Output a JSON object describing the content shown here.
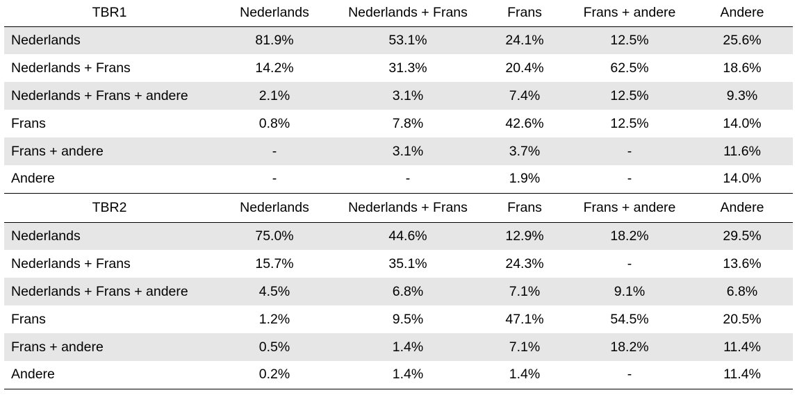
{
  "sections": [
    {
      "title": "TBR1",
      "columns": [
        "Nederlands",
        "Nederlands + Frans",
        "Frans",
        "Frans + andere",
        "Andere"
      ],
      "rows": [
        {
          "label": "Nederlands",
          "values": [
            "81.9%",
            "53.1%",
            "24.1%",
            "12.5%",
            "25.6%"
          ]
        },
        {
          "label": "Nederlands + Frans",
          "values": [
            "14.2%",
            "31.3%",
            "20.4%",
            "62.5%",
            "18.6%"
          ]
        },
        {
          "label": "Nederlands + Frans + andere",
          "values": [
            "2.1%",
            "3.1%",
            "7.4%",
            "12.5%",
            "9.3%"
          ]
        },
        {
          "label": "Frans",
          "values": [
            "0.8%",
            "7.8%",
            "42.6%",
            "12.5%",
            "14.0%"
          ]
        },
        {
          "label": "Frans + andere",
          "values": [
            "-",
            "3.1%",
            "3.7%",
            "-",
            "11.6%"
          ]
        },
        {
          "label": "Andere",
          "values": [
            "-",
            "-",
            "1.9%",
            "-",
            "14.0%"
          ]
        }
      ]
    },
    {
      "title": "TBR2",
      "columns": [
        "Nederlands",
        "Nederlands + Frans",
        "Frans",
        "Frans + andere",
        "Andere"
      ],
      "rows": [
        {
          "label": "Nederlands",
          "values": [
            "75.0%",
            "44.6%",
            "12.9%",
            "18.2%",
            "29.5%"
          ]
        },
        {
          "label": "Nederlands + Frans",
          "values": [
            "15.7%",
            "35.1%",
            "24.3%",
            "-",
            "13.6%"
          ]
        },
        {
          "label": "Nederlands + Frans + andere",
          "values": [
            "4.5%",
            "6.8%",
            "7.1%",
            "9.1%",
            "6.8%"
          ]
        },
        {
          "label": "Frans",
          "values": [
            "1.2%",
            "9.5%",
            "47.1%",
            "54.5%",
            "20.5%"
          ]
        },
        {
          "label": "Frans + andere",
          "values": [
            "0.5%",
            "1.4%",
            "7.1%",
            "18.2%",
            "11.4%"
          ]
        },
        {
          "label": "Andere",
          "values": [
            "0.2%",
            "1.4%",
            "1.4%",
            "-",
            "11.4%"
          ]
        }
      ]
    }
  ],
  "colors": {
    "row_shade": "#e7e6e6",
    "rule": "#000000"
  }
}
